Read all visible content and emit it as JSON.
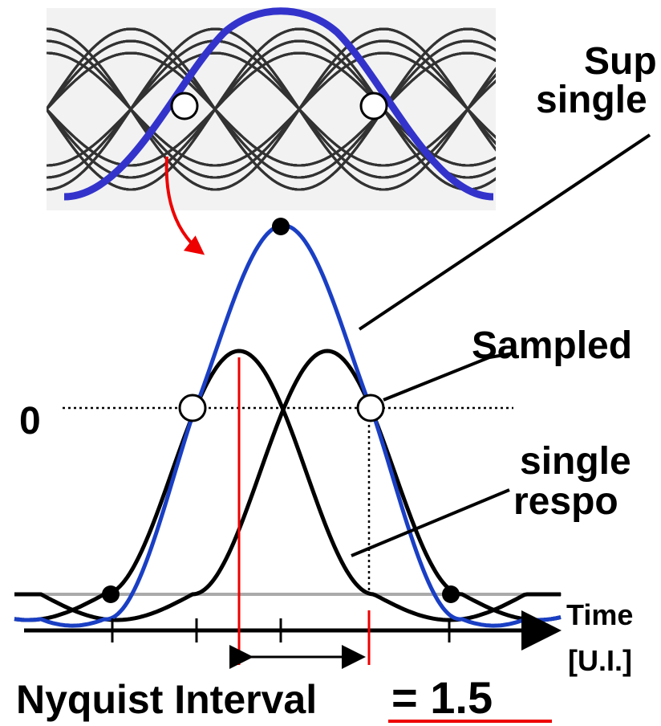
{
  "labels": {
    "superposition": "Sup",
    "superposition_line2": "single",
    "sampled": "Sampled",
    "zero": "0",
    "single": "single",
    "response": "respo",
    "time": "Time",
    "unit": "[U.I.]",
    "nyquist": "Nyquist Interval",
    "nyquist_value": "= 1.5"
  }
}
